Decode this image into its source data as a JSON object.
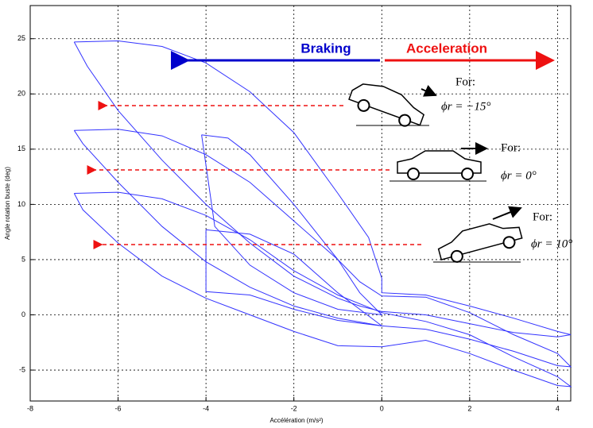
{
  "chart_data": {
    "type": "line",
    "xlabel": "Accélération (m/s²)",
    "ylabel": "Angle rotation buste (deg)",
    "xlim": [
      -8,
      4.3
    ],
    "ylim": [
      -7.8,
      28
    ],
    "xticks": [
      -8,
      -6,
      -4,
      -2,
      0,
      2,
      4
    ],
    "yticks": [
      -5,
      0,
      5,
      10,
      15,
      20,
      25
    ],
    "grid": true,
    "series": [
      {
        "color": "#3333ff",
        "x": [
          -7,
          -6,
          -5,
          -4,
          -3,
          -2,
          -1,
          -0.3,
          0,
          0,
          1,
          2,
          3,
          4,
          4.3,
          4,
          3,
          2,
          1,
          0,
          -0.5,
          -1,
          -2,
          -3,
          -4,
          -5,
          -6,
          -6.7,
          -7
        ],
        "values": [
          24.7,
          24.8,
          24.3,
          22.8,
          20.2,
          16.5,
          11,
          7,
          3.3,
          2,
          1.8,
          0.8,
          -0.3,
          -1.5,
          -1.8,
          -2,
          -1.6,
          -0.8,
          0,
          0.3,
          0.8,
          1.5,
          3.5,
          6.5,
          10,
          14,
          18.5,
          22.5,
          24.7
        ]
      },
      {
        "color": "#3333ff",
        "x": [
          -7,
          -6,
          -5,
          -4,
          -3,
          -2,
          -1,
          -0.5,
          0,
          1,
          2,
          3,
          4,
          4.3,
          4,
          3,
          2,
          1,
          0,
          -1,
          -2,
          -3,
          -4,
          -5,
          -6,
          -6.8,
          -7
        ],
        "values": [
          16.7,
          16.8,
          16.2,
          14.5,
          12,
          8.5,
          5,
          3,
          1.7,
          1.6,
          0.2,
          -1.8,
          -3.5,
          -4.7,
          -4.6,
          -3.3,
          -2.2,
          -1.3,
          -1,
          -0.3,
          0.8,
          2.5,
          4.8,
          8,
          12,
          15.5,
          16.7
        ]
      },
      {
        "color": "#3333ff",
        "x": [
          -7,
          -6,
          -5,
          -4,
          -3,
          -2,
          -1,
          0,
          1,
          2,
          3,
          4,
          4.3,
          4,
          3,
          2,
          1,
          0,
          -1,
          -2,
          -3,
          -4,
          -5,
          -6,
          -6.8,
          -7
        ],
        "values": [
          11,
          11.1,
          10.5,
          9,
          6.8,
          4,
          1.8,
          0.2,
          -0.6,
          -1.8,
          -3.8,
          -5.6,
          -6.5,
          -6.4,
          -5,
          -3.5,
          -2.3,
          -2.9,
          -2.8,
          -1.5,
          0,
          1.5,
          3.5,
          6.5,
          9.5,
          11
        ]
      },
      {
        "color": "#3333ff",
        "x": [
          -4.1,
          -3.5,
          -3,
          -2,
          -1,
          -0.5,
          0,
          -1,
          -2,
          -3,
          -3.8,
          -4.1
        ],
        "values": [
          16.3,
          16,
          14.5,
          10,
          5,
          2,
          0,
          0.5,
          2,
          4.5,
          8,
          16.3
        ]
      },
      {
        "color": "#3333ff",
        "x": [
          -4,
          -3,
          -2,
          -1,
          0,
          -1,
          -2,
          -3,
          -4,
          -4
        ],
        "values": [
          7.7,
          7.3,
          5.5,
          2,
          -1,
          -0.5,
          0.5,
          1.8,
          2.1,
          7.7
        ]
      }
    ],
    "annotations": {
      "braking": "Braking",
      "acceleration": "Acceleration",
      "for1": "For:",
      "phi1": "ϕr = −15°",
      "for2": "For:",
      "phi2": "ϕr = 0°",
      "for3": "For:",
      "phi3": "ϕr = 10°"
    }
  }
}
